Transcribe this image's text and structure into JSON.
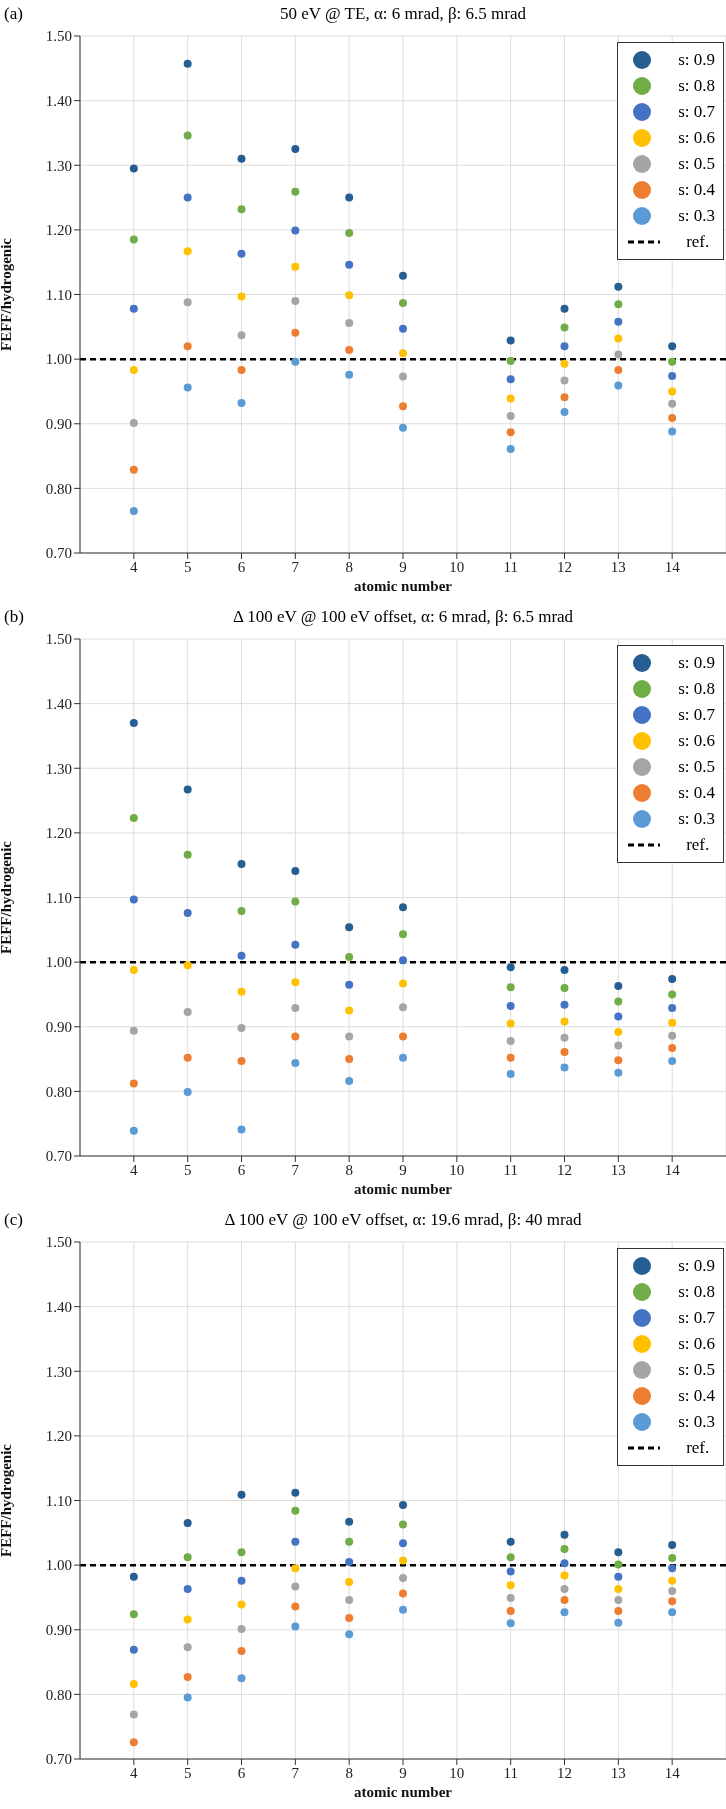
{
  "chart_data": [
    {
      "type": "scatter",
      "title": "50 eV @ TE, α: 6 mrad, β: 6.5 mrad",
      "annotations": [
        "(a)"
      ],
      "xlabel": "atomic number",
      "ylabel": "FEFF/hydrogenic",
      "x": [
        4,
        5,
        6,
        7,
        8,
        9,
        11,
        12,
        13,
        14
      ],
      "xlim": [
        3,
        15
      ],
      "xticks": [
        4,
        5,
        6,
        7,
        8,
        9,
        10,
        11,
        12,
        13,
        14
      ],
      "ylim": [
        0.7,
        1.5
      ],
      "yticks": [
        {
          "value": 0.7,
          "label": "0.70"
        },
        {
          "value": 0.8,
          "label": "0.80"
        },
        {
          "value": 0.9,
          "label": "0.90"
        },
        {
          "value": 1.0,
          "label": "1.00"
        },
        {
          "value": 1.1,
          "label": "1.10"
        },
        {
          "value": 1.2,
          "label": "1.20"
        },
        {
          "value": 1.3,
          "label": "1.30"
        },
        {
          "value": 1.4,
          "label": "1.40"
        },
        {
          "value": 1.5,
          "label": "1.50"
        }
      ],
      "grid": true,
      "legend": "top right",
      "marker": "circle",
      "ref_lines": [
        {
          "axis": "y",
          "value": 1.0,
          "label": "ref.",
          "color": "#000000",
          "line_style": "dashed"
        }
      ],
      "series": [
        {
          "name": "s: 0.9",
          "color": "#255e91",
          "values": [
            1.295,
            1.457,
            1.31,
            1.325,
            1.25,
            1.129,
            1.029,
            1.078,
            1.112,
            1.02
          ]
        },
        {
          "name": "s: 0.8",
          "color": "#70ad47",
          "values": [
            1.185,
            1.346,
            1.232,
            1.259,
            1.195,
            1.087,
            0.997,
            1.049,
            1.085,
            0.996
          ]
        },
        {
          "name": "s: 0.7",
          "color": "#4472c4",
          "values": [
            1.078,
            1.25,
            1.163,
            1.199,
            1.146,
            1.047,
            0.969,
            1.02,
            1.058,
            0.974
          ]
        },
        {
          "name": "s: 0.6",
          "color": "#ffc000",
          "values": [
            0.983,
            1.167,
            1.097,
            1.143,
            1.099,
            1.009,
            0.939,
            0.993,
            1.032,
            0.95
          ]
        },
        {
          "name": "s: 0.5",
          "color": "#a5a5a5",
          "values": [
            0.901,
            1.088,
            1.037,
            1.09,
            1.056,
            0.973,
            0.912,
            0.967,
            1.007,
            0.931
          ]
        },
        {
          "name": "s: 0.4",
          "color": "#ed7d31",
          "values": [
            0.829,
            1.02,
            0.983,
            1.041,
            1.014,
            0.927,
            0.887,
            0.941,
            0.983,
            0.909
          ]
        },
        {
          "name": "s: 0.3",
          "color": "#5b9bd5",
          "values": [
            0.765,
            0.956,
            0.932,
            0.996,
            0.976,
            0.894,
            0.861,
            0.918,
            0.959,
            0.888
          ]
        }
      ]
    },
    {
      "type": "scatter",
      "title": "Δ 100 eV @ 100 eV offset, α: 6 mrad, β: 6.5 mrad",
      "annotations": [
        "(b)"
      ],
      "xlabel": "atomic number",
      "ylabel": "FEFF/hydrogenic",
      "x": [
        4,
        5,
        6,
        7,
        8,
        9,
        11,
        12,
        13,
        14
      ],
      "xlim": [
        3,
        15
      ],
      "xticks": [
        4,
        5,
        6,
        7,
        8,
        9,
        10,
        11,
        12,
        13,
        14
      ],
      "ylim": [
        0.7,
        1.5
      ],
      "yticks": [
        {
          "value": 0.7,
          "label": "0.70"
        },
        {
          "value": 0.8,
          "label": "0.80"
        },
        {
          "value": 0.9,
          "label": "0.90"
        },
        {
          "value": 1.0,
          "label": "1.00"
        },
        {
          "value": 1.1,
          "label": "1.10"
        },
        {
          "value": 1.2,
          "label": "1.20"
        },
        {
          "value": 1.3,
          "label": "1.30"
        },
        {
          "value": 1.4,
          "label": "1.40"
        },
        {
          "value": 1.5,
          "label": "1.50"
        }
      ],
      "grid": true,
      "legend": "top right",
      "marker": "circle",
      "ref_lines": [
        {
          "axis": "y",
          "value": 1.0,
          "label": "ref.",
          "color": "#000000",
          "line_style": "dashed"
        }
      ],
      "series": [
        {
          "name": "s: 0.9",
          "color": "#255e91",
          "values": [
            1.37,
            1.267,
            1.152,
            1.141,
            1.054,
            1.085,
            0.992,
            0.988,
            0.963,
            0.974
          ]
        },
        {
          "name": "s: 0.8",
          "color": "#70ad47",
          "values": [
            1.223,
            1.166,
            1.079,
            1.094,
            1.008,
            1.043,
            0.961,
            0.96,
            0.939,
            0.95
          ]
        },
        {
          "name": "s: 0.7",
          "color": "#4472c4",
          "values": [
            1.097,
            1.076,
            1.01,
            1.027,
            0.965,
            1.003,
            0.932,
            0.934,
            0.916,
            0.929
          ]
        },
        {
          "name": "s: 0.6",
          "color": "#ffc000",
          "values": [
            0.988,
            0.995,
            0.954,
            0.969,
            0.925,
            0.967,
            0.905,
            0.908,
            0.892,
            0.906
          ]
        },
        {
          "name": "s: 0.5",
          "color": "#a5a5a5",
          "values": [
            0.894,
            0.923,
            0.898,
            0.929,
            0.885,
            0.93,
            0.878,
            0.883,
            0.871,
            0.886
          ]
        },
        {
          "name": "s: 0.4",
          "color": "#ed7d31",
          "values": [
            0.812,
            0.852,
            0.847,
            0.885,
            0.85,
            0.885,
            0.852,
            0.861,
            0.848,
            0.867
          ]
        },
        {
          "name": "s: 0.3",
          "color": "#5b9bd5",
          "values": [
            0.739,
            0.799,
            0.741,
            0.844,
            0.816,
            0.852,
            0.827,
            0.837,
            0.829,
            0.847
          ]
        }
      ]
    },
    {
      "type": "scatter",
      "title": "Δ 100 eV @ 100 eV offset, α: 19.6 mrad, β: 40 mrad",
      "annotations": [
        "(c)"
      ],
      "xlabel": "atomic number",
      "ylabel": "FEFF/hydrogenic",
      "x": [
        4,
        5,
        6,
        7,
        8,
        9,
        11,
        12,
        13,
        14
      ],
      "xlim": [
        3,
        15
      ],
      "xticks": [
        4,
        5,
        6,
        7,
        8,
        9,
        10,
        11,
        12,
        13,
        14
      ],
      "ylim": [
        0.7,
        1.5
      ],
      "yticks": [
        {
          "value": 0.7,
          "label": "0.70"
        },
        {
          "value": 0.8,
          "label": "0.80"
        },
        {
          "value": 0.9,
          "label": "0.90"
        },
        {
          "value": 1.0,
          "label": "1.00"
        },
        {
          "value": 1.1,
          "label": "1.10"
        },
        {
          "value": 1.2,
          "label": "1.20"
        },
        {
          "value": 1.3,
          "label": "1.30"
        },
        {
          "value": 1.4,
          "label": "1.40"
        },
        {
          "value": 1.5,
          "label": "1.50"
        }
      ],
      "grid": true,
      "legend": "top right",
      "marker": "circle",
      "ref_lines": [
        {
          "axis": "y",
          "value": 1.0,
          "label": "ref.",
          "color": "#000000",
          "line_style": "dashed"
        }
      ],
      "series": [
        {
          "name": "s: 0.9",
          "color": "#255e91",
          "values": [
            0.982,
            1.065,
            1.109,
            1.112,
            1.067,
            1.093,
            1.036,
            1.047,
            1.02,
            1.031
          ]
        },
        {
          "name": "s: 0.8",
          "color": "#70ad47",
          "values": [
            0.924,
            1.012,
            1.02,
            1.084,
            1.036,
            1.063,
            1.012,
            1.025,
            1.001,
            1.011
          ]
        },
        {
          "name": "s: 0.7",
          "color": "#4472c4",
          "values": [
            0.869,
            0.963,
            0.976,
            1.036,
            1.005,
            1.034,
            0.99,
            1.003,
            0.982,
            0.995
          ]
        },
        {
          "name": "s: 0.6",
          "color": "#ffc000",
          "values": [
            0.816,
            0.916,
            0.939,
            0.995,
            0.974,
            1.007,
            0.969,
            0.984,
            0.963,
            0.976
          ]
        },
        {
          "name": "s: 0.5",
          "color": "#a5a5a5",
          "values": [
            0.769,
            0.873,
            0.901,
            0.967,
            0.946,
            0.98,
            0.949,
            0.963,
            0.946,
            0.96
          ]
        },
        {
          "name": "s: 0.4",
          "color": "#ed7d31",
          "values": [
            0.726,
            0.827,
            0.867,
            0.936,
            0.918,
            0.956,
            0.929,
            0.946,
            0.929,
            0.944
          ]
        },
        {
          "name": "s: 0.3",
          "color": "#5b9bd5",
          "values": [
            null,
            0.795,
            0.825,
            0.905,
            0.893,
            0.931,
            0.91,
            0.927,
            0.911,
            0.927
          ]
        }
      ]
    }
  ]
}
